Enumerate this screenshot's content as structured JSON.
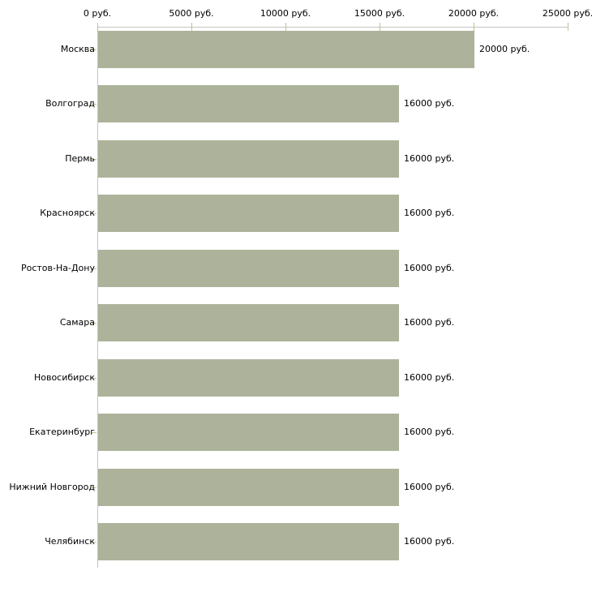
{
  "chart_data": {
    "type": "bar",
    "orientation": "horizontal",
    "title": "",
    "categories": [
      "Москва",
      "Волгоград",
      "Пермь",
      "Красноярск",
      "Ростов-На-Дону",
      "Самара",
      "Новосибирск",
      "Екатеринбург",
      "Нижний Новгород",
      "Челябинск"
    ],
    "values": [
      20000,
      16000,
      16000,
      16000,
      16000,
      16000,
      16000,
      16000,
      16000,
      16000
    ],
    "value_labels": [
      "20000 руб.",
      "16000 руб.",
      "16000 руб.",
      "16000 руб.",
      "16000 руб.",
      "16000 руб.",
      "16000 руб.",
      "16000 руб.",
      "16000 руб.",
      "16000 руб."
    ],
    "x_axis": {
      "position": "top",
      "unit": "руб.",
      "range": [
        0,
        25000
      ],
      "ticks": [
        0,
        5000,
        10000,
        15000,
        20000,
        25000
      ],
      "tick_labels": [
        "0 руб.",
        "5000 руб.",
        "10000 руб.",
        "15000 руб.",
        "20000 руб.",
        "25000 руб."
      ]
    },
    "grid": false,
    "legend": false,
    "colors": {
      "bar": "#acb39a",
      "axis_line": "#c4c4c4",
      "tick_mark": "#c2c294",
      "text": "#000000",
      "background": "#ffffff"
    }
  }
}
